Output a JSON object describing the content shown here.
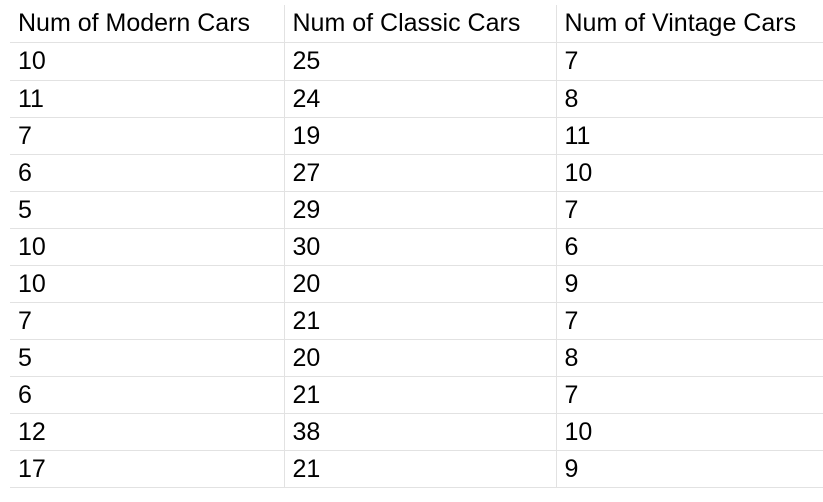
{
  "table": {
    "headers": [
      "Num of Modern Cars",
      "Num of Classic Cars",
      "Num of Vintage Cars"
    ],
    "rows": [
      [
        "10",
        "25",
        "7"
      ],
      [
        "11",
        "24",
        "8"
      ],
      [
        "7",
        "19",
        "11"
      ],
      [
        "6",
        "27",
        "10"
      ],
      [
        "5",
        "29",
        "7"
      ],
      [
        "10",
        "30",
        "6"
      ],
      [
        "10",
        "20",
        "9"
      ],
      [
        "7",
        "21",
        "7"
      ],
      [
        "5",
        "20",
        "8"
      ],
      [
        "6",
        "21",
        "7"
      ],
      [
        "12",
        "38",
        "10"
      ],
      [
        "17",
        "21",
        "9"
      ]
    ]
  }
}
